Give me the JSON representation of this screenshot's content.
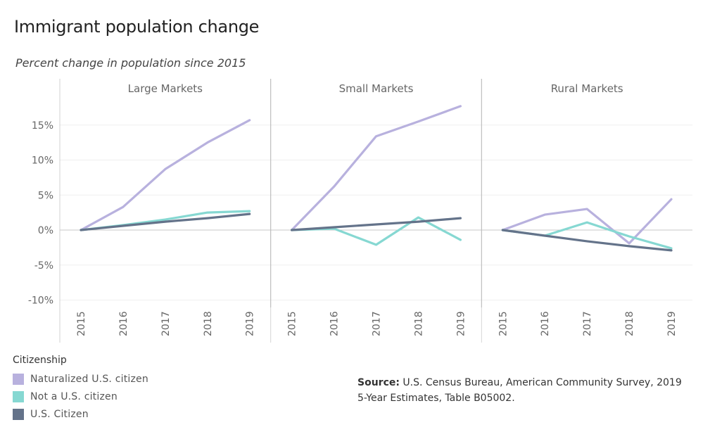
{
  "title": "Immigrant population change",
  "subtitle": "Percent change in population since 2015",
  "legend": {
    "title": "Citizenship",
    "items": [
      {
        "label": "Naturalized U.S. citizen",
        "color": "#b8b1de"
      },
      {
        "label": "Not a U.S. citizen",
        "color": "#86d8d2"
      },
      {
        "label": "U.S. Citizen",
        "color": "#64738a"
      }
    ]
  },
  "source": {
    "label": "Source:",
    "line1": " U.S. Census Bureau, American Community Survey, 2019",
    "line2": "5-Year Estimates, Table B05002."
  },
  "chart_data": {
    "type": "line",
    "x": [
      "2015",
      "2016",
      "2017",
      "2018",
      "2019"
    ],
    "yticks": [
      "15%",
      "10%",
      "5%",
      "0%",
      "-5%",
      "-10%"
    ],
    "ylim": [
      -11,
      20
    ],
    "grid": true,
    "panels": [
      {
        "name": "Large Markets",
        "series": [
          {
            "name": "Naturalized U.S. citizen",
            "values": [
              0,
              3.3,
              8.7,
              12.5,
              15.7
            ]
          },
          {
            "name": "Not a U.S. citizen",
            "values": [
              0,
              0.7,
              1.5,
              2.5,
              2.7
            ]
          },
          {
            "name": "U.S. Citizen",
            "values": [
              0,
              0.6,
              1.2,
              1.7,
              2.3
            ]
          }
        ]
      },
      {
        "name": "Small Markets",
        "series": [
          {
            "name": "Naturalized U.S. citizen",
            "values": [
              0,
              6.2,
              13.4,
              15.5,
              17.7
            ]
          },
          {
            "name": "Not a U.S. citizen",
            "values": [
              0,
              0.2,
              -2.1,
              1.8,
              -1.4
            ]
          },
          {
            "name": "U.S. Citizen",
            "values": [
              0,
              0.4,
              0.8,
              1.2,
              1.7
            ]
          }
        ]
      },
      {
        "name": "Rural Markets",
        "series": [
          {
            "name": "Naturalized U.S. citizen",
            "values": [
              0,
              2.2,
              3.0,
              -1.9,
              4.4
            ]
          },
          {
            "name": "Not a U.S. citizen",
            "values": [
              0,
              -0.8,
              1.1,
              -0.9,
              -2.6
            ]
          },
          {
            "name": "U.S. Citizen",
            "values": [
              0,
              -0.8,
              -1.6,
              -2.3,
              -2.9
            ]
          }
        ]
      }
    ]
  }
}
